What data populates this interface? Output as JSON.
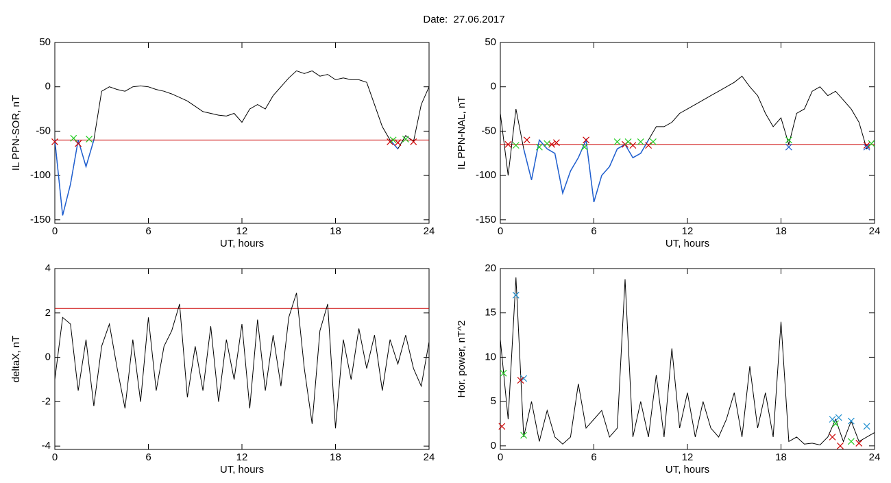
{
  "title": "Date:  27.06.2017",
  "chart_data": [
    {
      "type": "line",
      "ylabel": "IL PPN-SOR, nT",
      "xlabel": "UT, hours",
      "xlim": [
        0,
        24
      ],
      "ylim": [
        -154,
        50
      ],
      "xticks": [
        0,
        6,
        12,
        18,
        24
      ],
      "yticks": [
        -150,
        -100,
        -50,
        0,
        50
      ],
      "threshold": {
        "value": -60,
        "color": "#cc0000"
      },
      "x": [
        0,
        0.5,
        1,
        1.5,
        2,
        2.5,
        3,
        3.5,
        4,
        4.5,
        5,
        5.5,
        6,
        6.5,
        7,
        7.5,
        8,
        8.5,
        9,
        9.5,
        10,
        10.5,
        11,
        11.5,
        12,
        12.5,
        13,
        13.5,
        14,
        14.5,
        15,
        15.5,
        16,
        16.5,
        17,
        17.5,
        18,
        18.5,
        19,
        19.5,
        20,
        20.5,
        21,
        21.5,
        22,
        22.5,
        23,
        23.5,
        24
      ],
      "series": [
        {
          "color": "#000000",
          "values": [
            -60,
            -145,
            -110,
            -60,
            -90,
            -60,
            -5,
            0,
            -3,
            -5,
            0,
            1,
            0,
            -3,
            -5,
            -8,
            -12,
            -16,
            -22,
            -28,
            -30,
            -32,
            -33,
            -30,
            -40,
            -25,
            -20,
            -25,
            -10,
            0,
            10,
            18,
            15,
            18,
            12,
            14,
            8,
            10,
            8,
            8,
            5,
            -20,
            -45,
            -60,
            -70,
            -55,
            -62,
            -20,
            0
          ]
        },
        {
          "color": "#1f5fd0",
          "values": [
            -60,
            -145,
            -110,
            -60,
            -90,
            -60,
            null,
            null,
            null,
            null,
            null,
            null,
            null,
            null,
            null,
            null,
            null,
            null,
            null,
            null,
            null,
            null,
            null,
            null,
            null,
            null,
            null,
            null,
            null,
            null,
            null,
            null,
            null,
            null,
            null,
            null,
            null,
            null,
            null,
            null,
            null,
            null,
            null,
            -60,
            -70,
            null,
            -62,
            null,
            null
          ]
        }
      ],
      "markers": [
        {
          "color": "#cc0000",
          "x": [
            0,
            1.5,
            21.5,
            22,
            23
          ],
          "y": [
            -62,
            -64,
            -62,
            -63,
            -62
          ]
        },
        {
          "color": "#22cc22",
          "x": [
            1.2,
            2.2,
            21.7,
            22.5
          ],
          "y": [
            -58,
            -59,
            -60,
            -59
          ]
        }
      ]
    },
    {
      "type": "line",
      "ylabel": "IL PPN-NAL, nT",
      "xlabel": "UT, hours",
      "xlim": [
        0,
        24
      ],
      "ylim": [
        -154,
        50
      ],
      "xticks": [
        0,
        6,
        12,
        18,
        24
      ],
      "yticks": [
        -150,
        -100,
        -50,
        0,
        50
      ],
      "threshold": {
        "value": -65,
        "color": "#cc0000"
      },
      "x": [
        0,
        0.5,
        1,
        1.5,
        2,
        2.5,
        3,
        3.5,
        4,
        4.5,
        5,
        5.5,
        6,
        6.5,
        7,
        7.5,
        8,
        8.5,
        9,
        9.5,
        10,
        10.5,
        11,
        11.5,
        12,
        12.5,
        13,
        13.5,
        14,
        14.5,
        15,
        15.5,
        16,
        16.5,
        17,
        17.5,
        18,
        18.5,
        19,
        19.5,
        20,
        20.5,
        21,
        21.5,
        22,
        22.5,
        23,
        23.5,
        24
      ],
      "series": [
        {
          "color": "#000000",
          "values": [
            -30,
            -100,
            -25,
            -70,
            -105,
            -60,
            -70,
            -75,
            -120,
            -95,
            -80,
            -60,
            -130,
            -100,
            -90,
            -70,
            -65,
            -80,
            -75,
            -60,
            -45,
            -45,
            -40,
            -30,
            -25,
            -20,
            -15,
            -10,
            -5,
            0,
            5,
            12,
            0,
            -10,
            -30,
            -45,
            -35,
            -65,
            -30,
            -25,
            -5,
            0,
            -10,
            -5,
            -15,
            -25,
            -40,
            -70,
            -60
          ]
        },
        {
          "color": "#1f5fd0",
          "values": [
            null,
            -100,
            null,
            -70,
            -105,
            -60,
            -70,
            -75,
            -120,
            -95,
            -80,
            -60,
            -130,
            -100,
            -90,
            -70,
            -65,
            -80,
            -75,
            -60,
            null,
            null,
            null,
            null,
            null,
            null,
            null,
            null,
            null,
            null,
            null,
            null,
            null,
            null,
            null,
            null,
            null,
            -65,
            null,
            null,
            null,
            null,
            null,
            null,
            null,
            null,
            null,
            -70,
            null
          ]
        }
      ],
      "markers": [
        {
          "color": "#cc0000",
          "x": [
            0.5,
            1.7,
            3.3,
            3.6,
            5.5,
            8,
            8.5,
            9.5,
            23.5
          ],
          "y": [
            -65,
            -60,
            -65,
            -63,
            -60,
            -65,
            -66,
            -66,
            -66
          ]
        },
        {
          "color": "#22cc22",
          "x": [
            1,
            2.5,
            3,
            5.4,
            7.5,
            8.2,
            9,
            9.8,
            18.5,
            23.8
          ],
          "y": [
            -66,
            -68,
            -64,
            -68,
            -62,
            -62,
            -62,
            -62,
            -60,
            -64
          ]
        },
        {
          "color": "#1f5fd0",
          "x": [
            18.5,
            23.5
          ],
          "y": [
            -68,
            -68
          ]
        }
      ]
    },
    {
      "type": "line",
      "ylabel": "deltaX, nT",
      "xlabel": "UT, hours",
      "xlim": [
        0,
        24
      ],
      "ylim": [
        -4.15,
        4
      ],
      "xticks": [
        0,
        6,
        12,
        18,
        24
      ],
      "yticks": [
        -4,
        -2,
        0,
        2,
        4
      ],
      "threshold": {
        "value": 2.2,
        "color": "#cc0000"
      },
      "x": [
        0,
        0.5,
        1,
        1.5,
        2,
        2.5,
        3,
        3.5,
        4,
        4.5,
        5,
        5.5,
        6,
        6.5,
        7,
        7.5,
        8,
        8.5,
        9,
        9.5,
        10,
        10.5,
        11,
        11.5,
        12,
        12.5,
        13,
        13.5,
        14,
        14.5,
        15,
        15.5,
        16,
        16.5,
        17,
        17.5,
        18,
        18.5,
        19,
        19.5,
        20,
        20.5,
        21,
        21.5,
        22,
        22.5,
        23,
        23.5,
        24
      ],
      "series": [
        {
          "color": "#000000",
          "values": [
            -1,
            1.8,
            1.5,
            -1.5,
            0.8,
            -2.2,
            0.5,
            1.5,
            -0.5,
            -2.3,
            0.8,
            -2,
            1.8,
            -1.5,
            0.5,
            1.2,
            2.4,
            -1.8,
            0.5,
            -1.5,
            1.4,
            -2,
            0.8,
            -1,
            1.5,
            -2.3,
            1.7,
            -1.5,
            1,
            -1.3,
            1.8,
            2.9,
            -0.5,
            -3,
            1.2,
            2.4,
            -3.2,
            0.8,
            -1,
            1.3,
            -0.5,
            1,
            -1.5,
            0.8,
            -0.3,
            1,
            -0.5,
            -1.3,
            0.7
          ]
        }
      ]
    },
    {
      "type": "line",
      "ylabel": "Hor. power, nT^2",
      "xlabel": "UT, hours",
      "xlim": [
        0,
        24
      ],
      "ylim": [
        -0.4,
        20
      ],
      "xticks": [
        0,
        6,
        12,
        18,
        24
      ],
      "yticks": [
        0,
        5,
        10,
        15,
        20
      ],
      "x": [
        0,
        0.5,
        1,
        1.5,
        2,
        2.5,
        3,
        3.5,
        4,
        4.5,
        5,
        5.5,
        6,
        6.5,
        7,
        7.5,
        8,
        8.5,
        9,
        9.5,
        10,
        10.5,
        11,
        11.5,
        12,
        12.5,
        13,
        13.5,
        14,
        14.5,
        15,
        15.5,
        16,
        16.5,
        17,
        17.5,
        18,
        18.5,
        19,
        19.5,
        20,
        20.5,
        21,
        21.5,
        22,
        22.5,
        23,
        23.5,
        24
      ],
      "series": [
        {
          "color": "#000000",
          "values": [
            12,
            3,
            19,
            1,
            5,
            0.5,
            4,
            1,
            0.2,
            1,
            7,
            2,
            3,
            4,
            1,
            2,
            18.8,
            1,
            5,
            1,
            8,
            1,
            11,
            2,
            6,
            1,
            5,
            2,
            1,
            3,
            6,
            1,
            9,
            2,
            6,
            1,
            14,
            0.5,
            1,
            0.2,
            0.3,
            0.1,
            1,
            3,
            0.5,
            2.8,
            0.5,
            1,
            1.5
          ]
        }
      ],
      "markers": [
        {
          "color": "#1f8fd0",
          "x": [
            1,
            1.5,
            21.3,
            21.7,
            22.5,
            23.5
          ],
          "y": [
            17,
            7.6,
            3,
            3.2,
            2.8,
            2.2
          ]
        },
        {
          "color": "#cc0000",
          "x": [
            0.1,
            1.3,
            21.3,
            21.8,
            23
          ],
          "y": [
            2.2,
            7.4,
            1,
            0,
            0.3
          ]
        },
        {
          "color": "#22cc22",
          "x": [
            0.2,
            1.5,
            21.5,
            22.5
          ],
          "y": [
            8.2,
            1.2,
            2.5,
            0.5
          ]
        }
      ]
    }
  ]
}
